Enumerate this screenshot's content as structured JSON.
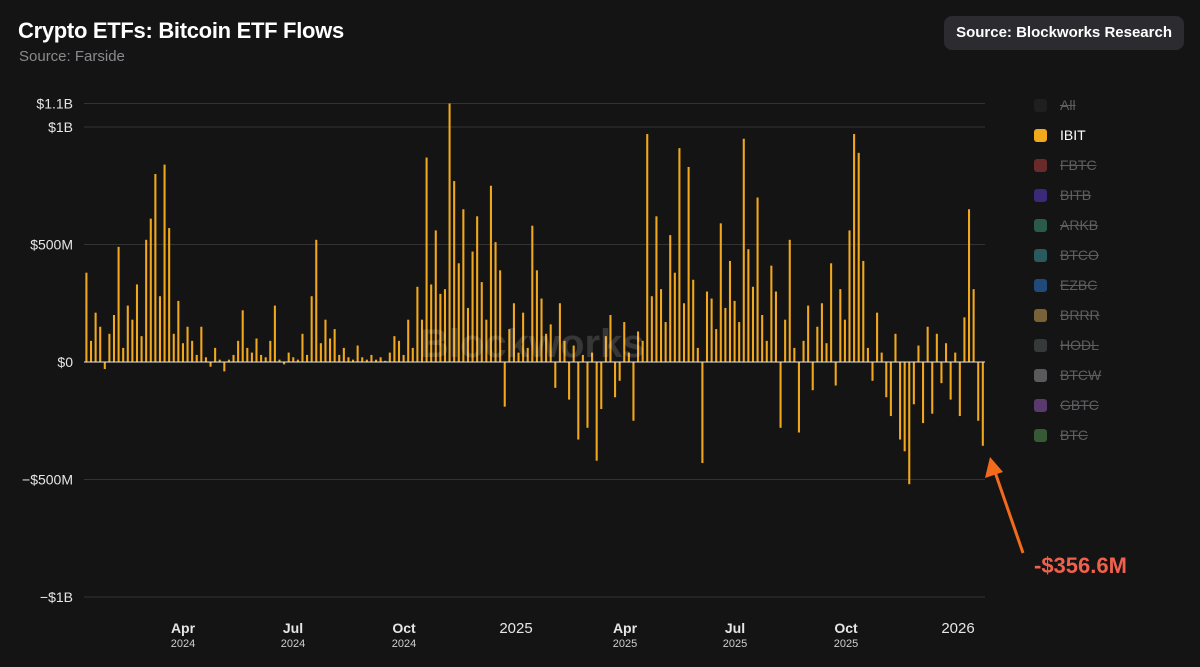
{
  "header": {
    "title": "Crypto ETFs: Bitcoin ETF Flows",
    "subtitle": "Source: Farside",
    "source_button": "Source: Blockworks Research"
  },
  "watermark": "Blockworks",
  "annotation": {
    "text": "-$356.6M",
    "color": "#f0604d",
    "arrow_color": "#f26b1d"
  },
  "legend": [
    {
      "label": "All",
      "color": "#1f1f1f",
      "active": false
    },
    {
      "label": "IBIT",
      "color": "#f2a81d",
      "active": true
    },
    {
      "label": "FBTC",
      "color": "#6b2a2a",
      "active": false
    },
    {
      "label": "BITB",
      "color": "#3a2a78",
      "active": false
    },
    {
      "label": "ARKB",
      "color": "#2a5a48",
      "active": false
    },
    {
      "label": "BTCO",
      "color": "#2a5a5e",
      "active": false
    },
    {
      "label": "EZBC",
      "color": "#1f4a7a",
      "active": false
    },
    {
      "label": "BRRR",
      "color": "#7a6238",
      "active": false
    },
    {
      "label": "HODL",
      "color": "#35393a",
      "active": false
    },
    {
      "label": "BTCW",
      "color": "#5a5a5c",
      "active": false
    },
    {
      "label": "GBTC",
      "color": "#5a3a6e",
      "active": false
    },
    {
      "label": "BTC",
      "color": "#365a36",
      "active": false
    }
  ],
  "chart_data": {
    "type": "bar",
    "title": "Crypto ETFs: Bitcoin ETF Flows",
    "series_name": "IBIT",
    "unit": "USD millions",
    "bar_color": "#f2a81d",
    "ylim": [
      -1000,
      1100
    ],
    "yticks": [
      {
        "value": 1100,
        "label": "$1.1B"
      },
      {
        "value": 1000,
        "label": "$1B"
      },
      {
        "value": 500,
        "label": "$500M"
      },
      {
        "value": 0,
        "label": "$0"
      },
      {
        "value": -500,
        "label": "−$500M"
      },
      {
        "value": -1000,
        "label": "−$1B"
      }
    ],
    "xticks": [
      {
        "label": "Apr",
        "sub": "2024"
      },
      {
        "label": "Jul",
        "sub": "2024"
      },
      {
        "label": "Oct",
        "sub": "2024"
      },
      {
        "label": "2025",
        "sub": ""
      },
      {
        "label": "Apr",
        "sub": "2025"
      },
      {
        "label": "Jul",
        "sub": "2025"
      },
      {
        "label": "Oct",
        "sub": "2025"
      },
      {
        "label": "2026",
        "sub": ""
      }
    ],
    "period": "Jan 2024 - Jan 2026",
    "values": [
      380,
      90,
      210,
      150,
      -30,
      120,
      200,
      490,
      60,
      240,
      180,
      330,
      110,
      520,
      610,
      800,
      280,
      840,
      570,
      120,
      260,
      80,
      150,
      90,
      30,
      150,
      20,
      -20,
      60,
      10,
      -40,
      10,
      30,
      90,
      220,
      60,
      40,
      100,
      30,
      20,
      90,
      240,
      10,
      -10,
      40,
      20,
      10,
      120,
      30,
      280,
      520,
      80,
      180,
      100,
      140,
      30,
      60,
      20,
      10,
      70,
      20,
      10,
      30,
      10,
      20,
      5,
      40,
      110,
      90,
      30,
      180,
      60,
      320,
      180,
      870,
      330,
      560,
      290,
      310,
      1100,
      770,
      420,
      650,
      230,
      470,
      620,
      340,
      180,
      750,
      510,
      390,
      -190,
      140,
      250,
      40,
      210,
      60,
      580,
      390,
      270,
      120,
      160,
      -110,
      250,
      90,
      -160,
      70,
      -330,
      30,
      -280,
      40,
      -420,
      -200,
      110,
      200,
      -150,
      -80,
      170,
      40,
      -250,
      130,
      90,
      970,
      280,
      620,
      310,
      170,
      540,
      380,
      910,
      250,
      830,
      350,
      60,
      -430,
      300,
      270,
      140,
      590,
      230,
      430,
      260,
      170,
      950,
      480,
      320,
      700,
      200,
      90,
      410,
      300,
      -280,
      180,
      520,
      60,
      -300,
      90,
      240,
      -120,
      150,
      250,
      80,
      420,
      -100,
      310,
      180,
      560,
      970,
      890,
      430,
      60,
      -80,
      210,
      40,
      -150,
      -230,
      120,
      -330,
      -380,
      -520,
      -180,
      70,
      -260,
      150,
      -220,
      120,
      -90,
      80,
      -160,
      40,
      -230,
      190,
      650,
      310,
      -250,
      -356.6
    ]
  }
}
